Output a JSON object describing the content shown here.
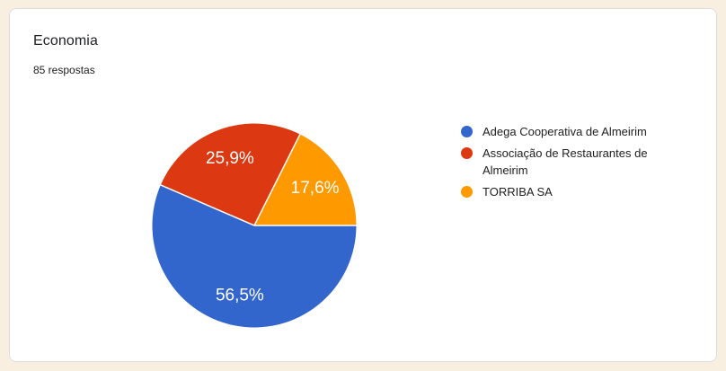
{
  "page": {
    "background_color": "#f9efe0"
  },
  "card": {
    "title": "Economia",
    "subtitle": "85 respostas",
    "background_color": "#ffffff",
    "border_color": "#dadce0"
  },
  "chart_data": {
    "type": "pie",
    "title": "Economia",
    "subtitle": "85 respostas",
    "legend_position": "right",
    "rotation_clockwise_from_top_deg": 90,
    "slice_label_color": "#ffffff",
    "separator_color": "#ffffff",
    "slices": [
      {
        "label": "Adega Cooperativa de Almeirim",
        "percent": 56.5,
        "percent_label": "56,5%",
        "color": "#3366cc"
      },
      {
        "label": "Associação de Restaurantes de Almeirim",
        "percent": 25.9,
        "percent_label": "25,9%",
        "color": "#dc3912"
      },
      {
        "label": "TORRIBA SA",
        "percent": 17.6,
        "percent_label": "17,6%",
        "color": "#ff9900"
      }
    ]
  }
}
